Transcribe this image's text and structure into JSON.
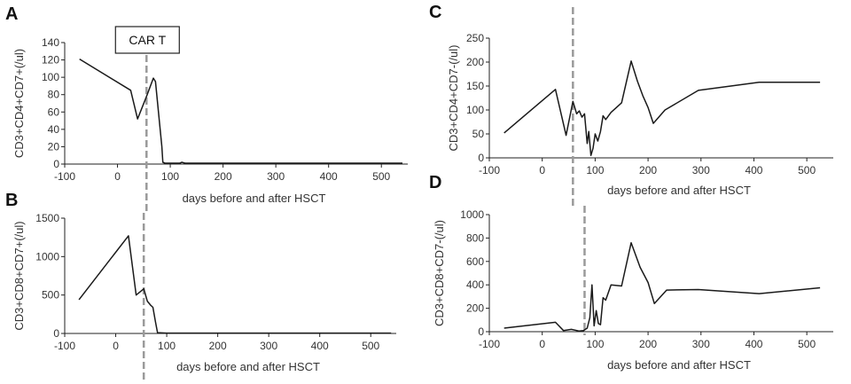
{
  "figure": {
    "annotation": "CAR T",
    "line_color": "#1a1a1a",
    "axis_color": "#222222",
    "dash_color": "#9a9a9a"
  },
  "chart_data": [
    {
      "panel": "A",
      "type": "line",
      "title": "",
      "xlabel": "days before and after HSCT",
      "ylabel": "CD3+CD4+CD7+(/ul)",
      "xlim": [
        -100,
        550
      ],
      "ylim": [
        0,
        140
      ],
      "xticks": [
        -100,
        0,
        100,
        200,
        300,
        400,
        500
      ],
      "yticks": [
        0,
        20,
        40,
        60,
        80,
        100,
        120,
        140
      ],
      "vline_x": 55,
      "series": [
        {
          "name": "CD3+CD4+CD7+",
          "x": [
            -72,
            25,
            38,
            55,
            68,
            72,
            76,
            80,
            84,
            86,
            90,
            118,
            122,
            128,
            140,
            300,
            470,
            540
          ],
          "y": [
            121,
            85,
            52,
            78,
            99,
            95,
            70,
            45,
            20,
            2,
            1,
            1,
            2,
            1,
            1,
            1,
            1,
            1
          ]
        }
      ]
    },
    {
      "panel": "B",
      "type": "line",
      "title": "",
      "xlabel": "days before and after HSCT",
      "ylabel": "CD3+CD8+CD7+(/ul)",
      "xlim": [
        -100,
        550
      ],
      "ylim": [
        0,
        1500
      ],
      "xticks": [
        -100,
        0,
        100,
        200,
        300,
        400,
        500
      ],
      "yticks": [
        0,
        500,
        1000,
        1500
      ],
      "vline_x": 55,
      "series": [
        {
          "name": "CD3+CD8+CD7+",
          "x": [
            -72,
            25,
            40,
            55,
            62,
            68,
            73,
            78,
            82,
            100,
            150,
            300,
            470,
            540
          ],
          "y": [
            440,
            1270,
            500,
            580,
            420,
            370,
            340,
            150,
            10,
            5,
            5,
            5,
            5,
            5
          ]
        }
      ]
    },
    {
      "panel": "C",
      "type": "line",
      "title": "",
      "xlabel": "days before and after HSCT",
      "ylabel": "CD3+CD4+CD7-(/ul)",
      "xlim": [
        -100,
        550
      ],
      "ylim": [
        0,
        250
      ],
      "xticks": [
        -100,
        0,
        100,
        200,
        300,
        400,
        500
      ],
      "yticks": [
        0,
        50,
        100,
        150,
        200,
        250
      ],
      "vline_x": 58,
      "series": [
        {
          "name": "CD3+CD4+CD7-",
          "x": [
            -72,
            25,
            45,
            58,
            65,
            70,
            75,
            80,
            85,
            88,
            92,
            96,
            100,
            105,
            110,
            115,
            120,
            130,
            140,
            150,
            168,
            180,
            190,
            200,
            210,
            232,
            295,
            410,
            525
          ],
          "y": [
            52,
            143,
            47,
            118,
            92,
            98,
            85,
            92,
            30,
            55,
            5,
            20,
            50,
            35,
            55,
            88,
            80,
            95,
            105,
            115,
            202,
            160,
            130,
            105,
            72,
            100,
            141,
            158,
            158
          ]
        }
      ]
    },
    {
      "panel": "D",
      "type": "line",
      "title": "",
      "xlabel": "days before and after HSCT",
      "ylabel": "CD3+CD8+CD7-(/ul)",
      "xlim": [
        -100,
        550
      ],
      "ylim": [
        0,
        1000
      ],
      "xticks": [
        -100,
        0,
        100,
        200,
        300,
        400,
        500
      ],
      "yticks": [
        0,
        200,
        400,
        600,
        800,
        1000
      ],
      "vline_x": 80,
      "series": [
        {
          "name": "CD3+CD8+CD7-",
          "x": [
            -72,
            25,
            40,
            55,
            70,
            78,
            85,
            90,
            94,
            98,
            102,
            106,
            110,
            115,
            120,
            130,
            150,
            168,
            185,
            200,
            212,
            235,
            295,
            410,
            525
          ],
          "y": [
            30,
            80,
            10,
            20,
            5,
            10,
            30,
            120,
            400,
            50,
            180,
            70,
            60,
            290,
            270,
            400,
            390,
            760,
            550,
            420,
            240,
            355,
            360,
            325,
            375
          ]
        }
      ]
    }
  ]
}
